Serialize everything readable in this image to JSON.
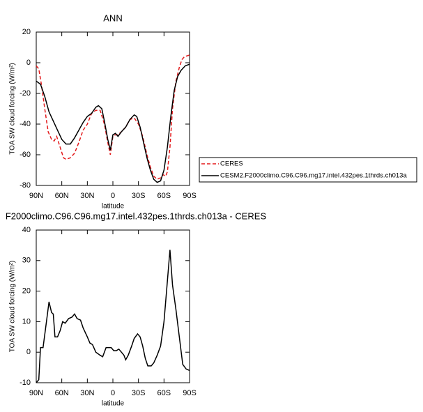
{
  "chart_data": [
    {
      "type": "line",
      "title": "ANN",
      "xlabel": "latitude",
      "ylabel": "TOA SW cloud forcing (W/m²)",
      "xlim": [
        90,
        -90
      ],
      "ylim": [
        -80,
        20
      ],
      "xticks": [
        {
          "value": 90,
          "label": "90N"
        },
        {
          "value": 60,
          "label": "60N"
        },
        {
          "value": 30,
          "label": "30N"
        },
        0,
        {
          "value": -30,
          "label": "30S"
        },
        {
          "value": -60,
          "label": "60S"
        },
        {
          "value": -90,
          "label": "90S"
        }
      ],
      "yticks": [
        -80,
        -60,
        -40,
        -20,
        0,
        20
      ],
      "series": [
        {
          "name": "CERES",
          "color": "#e31a1c",
          "linestyle": "dashed",
          "x": [
            90,
            87,
            84,
            80,
            76,
            72,
            69,
            66,
            62,
            58,
            55,
            50,
            45,
            40,
            35,
            30,
            25,
            20,
            15,
            10,
            6,
            3,
            0,
            -3,
            -6,
            -10,
            -15,
            -20,
            -25,
            -30,
            -35,
            -40,
            -44,
            -48,
            -52,
            -56,
            -59,
            -62,
            -64,
            -67,
            -70,
            -74,
            -78,
            -81,
            -84,
            -90
          ],
          "values": [
            -2,
            -4,
            -14,
            -30,
            -45,
            -50,
            -51,
            -48,
            -55,
            -62,
            -63,
            -62,
            -59,
            -52,
            -44,
            -40,
            -33,
            -31,
            -31,
            -40,
            -52,
            -60,
            -48,
            -47,
            -47,
            -45,
            -42,
            -37,
            -36,
            -40,
            -48,
            -60,
            -68,
            -74,
            -76,
            -75,
            -73,
            -74,
            -71,
            -55,
            -30,
            -12,
            -3,
            2,
            4,
            5
          ]
        },
        {
          "name": "CESM2.F2000climo.C96.C96.mg17.intel.432pes.1thrds.ch013a",
          "color": "#000000",
          "linestyle": "solid",
          "x": [
            90,
            85,
            80,
            75,
            70,
            65,
            60,
            55,
            50,
            45,
            40,
            35,
            30,
            25,
            20,
            17,
            13,
            10,
            6,
            3,
            0,
            -3,
            -6,
            -10,
            -15,
            -20,
            -25,
            -28,
            -32,
            -36,
            -40,
            -44,
            -48,
            -52,
            -56,
            -60,
            -64,
            -68,
            -72,
            -76,
            -80,
            -85,
            -90
          ],
          "values": [
            -12,
            -14,
            -22,
            -32,
            -38,
            -44,
            -50,
            -53,
            -53,
            -49,
            -44,
            -39,
            -35,
            -33,
            -29,
            -28,
            -30,
            -38,
            -50,
            -57,
            -47,
            -46,
            -48,
            -45,
            -42,
            -37,
            -34,
            -35,
            -42,
            -52,
            -62,
            -70,
            -76,
            -78,
            -77,
            -70,
            -55,
            -35,
            -18,
            -9,
            -5,
            -2,
            -1
          ]
        }
      ]
    },
    {
      "type": "line",
      "title": "F2000climo.C96.C96.mg17.intel.432pes.1thrds.ch013a - CERES",
      "xlabel": "latitude",
      "ylabel": "TOA SW cloud forcing (W/m²)",
      "xlim": [
        90,
        -90
      ],
      "ylim": [
        -10,
        40
      ],
      "xticks": [
        {
          "value": 90,
          "label": "90N"
        },
        {
          "value": 60,
          "label": "60N"
        },
        {
          "value": 30,
          "label": "30N"
        },
        0,
        {
          "value": -30,
          "label": "30S"
        },
        {
          "value": -60,
          "label": "60S"
        },
        {
          "value": -90,
          "label": "90S"
        }
      ],
      "yticks": [
        -10,
        0,
        10,
        20,
        30,
        40
      ],
      "series": [
        {
          "color": "#000000",
          "linestyle": "solid",
          "x": [
            90,
            87,
            85,
            82,
            78,
            75,
            72,
            70,
            68,
            65,
            62,
            59,
            56,
            52,
            48,
            45,
            42,
            38,
            35,
            30,
            27,
            24,
            20,
            15,
            12,
            8,
            5,
            2,
            -1,
            -4,
            -7,
            -10,
            -13,
            -15,
            -18,
            -22,
            -25,
            -29,
            -32,
            -35,
            -38,
            -41,
            -45,
            -48,
            -52,
            -56,
            -60,
            -63,
            -67,
            -70,
            -74,
            -78,
            -82,
            -86,
            -90
          ],
          "values": [
            -10,
            -9,
            1.5,
            1.5,
            10,
            16.5,
            13,
            12.5,
            5,
            5,
            7,
            10,
            9.5,
            11,
            11.5,
            12.5,
            11,
            10.5,
            8,
            5,
            3,
            2.5,
            0,
            -1,
            -1.5,
            1.5,
            1.5,
            1.5,
            0.5,
            0.5,
            1,
            0,
            -1,
            -2.5,
            -1,
            2,
            4.5,
            6,
            5,
            2,
            -2,
            -4.5,
            -4.5,
            -3.5,
            -1,
            2,
            10,
            20,
            33.5,
            22,
            14,
            5,
            -4,
            -5.5,
            -6
          ]
        }
      ]
    }
  ]
}
